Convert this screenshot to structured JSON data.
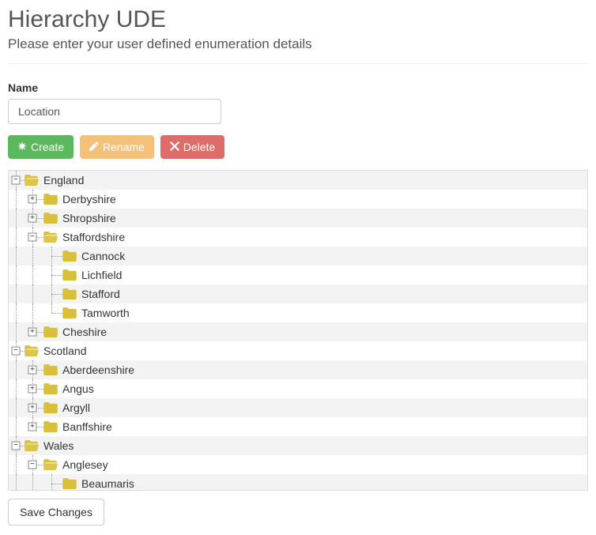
{
  "heading": "Hierarchy UDE",
  "subtitle": "Please enter your user defined enumeration details",
  "form": {
    "name_label": "Name",
    "name_value": "Location"
  },
  "buttons": {
    "create": "Create",
    "rename": "Rename",
    "delete": "Delete",
    "save": "Save Changes"
  },
  "colors": {
    "create_bg": "#5cb85c",
    "rename_bg": "#f0ad4e",
    "delete_bg": "#d9534f",
    "folder": "#d8c03b",
    "stripe_bg": "#f3f3f3"
  },
  "tree": [
    {
      "depth": 0,
      "expander": "-",
      "label": "England",
      "stripe": true,
      "is_last_sibling": false,
      "anc_vlines": []
    },
    {
      "depth": 1,
      "expander": "+",
      "label": "Derbyshire",
      "stripe": false,
      "is_last_sibling": false,
      "anc_vlines": [
        true
      ]
    },
    {
      "depth": 1,
      "expander": "+",
      "label": "Shropshire",
      "stripe": true,
      "is_last_sibling": false,
      "anc_vlines": [
        true
      ]
    },
    {
      "depth": 1,
      "expander": "-",
      "label": "Staffordshire",
      "stripe": false,
      "is_last_sibling": false,
      "anc_vlines": [
        true
      ]
    },
    {
      "depth": 2,
      "expander": "",
      "label": "Cannock",
      "stripe": true,
      "is_last_sibling": false,
      "anc_vlines": [
        true,
        true
      ]
    },
    {
      "depth": 2,
      "expander": "",
      "label": "Lichfield",
      "stripe": false,
      "is_last_sibling": false,
      "anc_vlines": [
        true,
        true
      ]
    },
    {
      "depth": 2,
      "expander": "",
      "label": "Stafford",
      "stripe": true,
      "is_last_sibling": false,
      "anc_vlines": [
        true,
        true
      ]
    },
    {
      "depth": 2,
      "expander": "",
      "label": "Tamworth",
      "stripe": false,
      "is_last_sibling": true,
      "anc_vlines": [
        true,
        true
      ]
    },
    {
      "depth": 1,
      "expander": "+",
      "label": "Cheshire",
      "stripe": true,
      "is_last_sibling": true,
      "anc_vlines": [
        true
      ]
    },
    {
      "depth": 0,
      "expander": "-",
      "label": "Scotland",
      "stripe": false,
      "is_last_sibling": false,
      "anc_vlines": []
    },
    {
      "depth": 1,
      "expander": "+",
      "label": "Aberdeenshire",
      "stripe": true,
      "is_last_sibling": false,
      "anc_vlines": [
        true
      ]
    },
    {
      "depth": 1,
      "expander": "+",
      "label": "Angus",
      "stripe": false,
      "is_last_sibling": false,
      "anc_vlines": [
        true
      ]
    },
    {
      "depth": 1,
      "expander": "+",
      "label": "Argyll",
      "stripe": true,
      "is_last_sibling": false,
      "anc_vlines": [
        true
      ]
    },
    {
      "depth": 1,
      "expander": "+",
      "label": "Banffshire",
      "stripe": false,
      "is_last_sibling": true,
      "anc_vlines": [
        true
      ]
    },
    {
      "depth": 0,
      "expander": "-",
      "label": "Wales",
      "stripe": true,
      "is_last_sibling": false,
      "anc_vlines": []
    },
    {
      "depth": 1,
      "expander": "-",
      "label": "Anglesey",
      "stripe": false,
      "is_last_sibling": false,
      "anc_vlines": [
        true
      ]
    },
    {
      "depth": 2,
      "expander": "",
      "label": "Beaumaris",
      "stripe": true,
      "is_last_sibling": false,
      "anc_vlines": [
        true,
        true
      ]
    }
  ]
}
